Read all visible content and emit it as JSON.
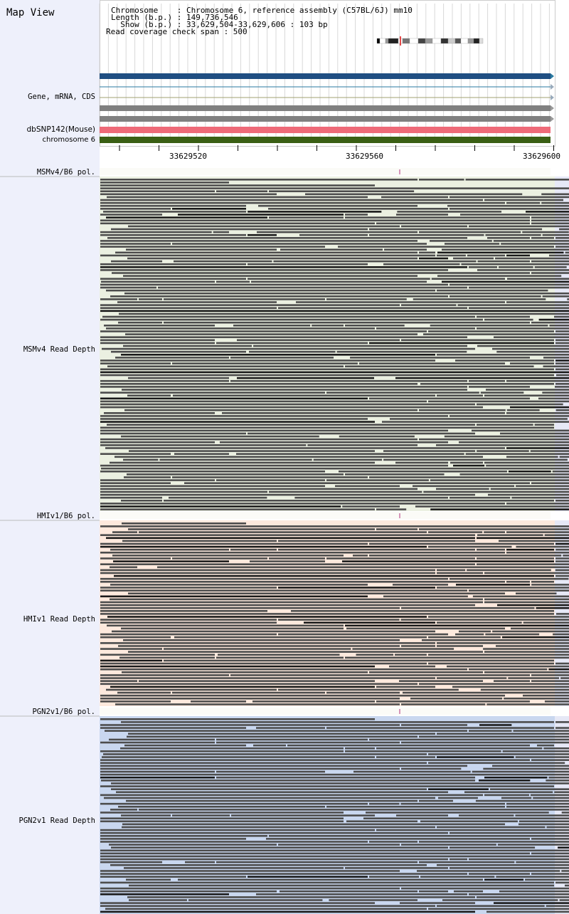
{
  "title": "Map View",
  "info": {
    "line1": "Chromosome    : Chromosome 6, reference assembly (C57BL/6J) mm10",
    "line2": "Length (b.p.) : 149,736,546",
    "line3": "  Show (b.p.) : 33,629,504-33,629,606 : 103 bp",
    "line4": "Read coverage check span : 500"
  },
  "tracks": {
    "gene": "Gene, mRNA, CDS",
    "dbsnp": "dbSNP142(Mouse)",
    "chrom": "chromosome 6"
  },
  "ticks": [
    "33629520",
    "33629560",
    "33629600"
  ],
  "strains": [
    {
      "pol": "MSMv4/B6 pol.",
      "depth": "MSMv4 Read Depth",
      "bg": "#ebf0e1"
    },
    {
      "pol": "HMIv1/B6 pol.",
      "depth": "HMIv1 Read Depth",
      "bg": "#fde9dd"
    },
    {
      "pol": "PGN2v1/B6 pol.",
      "depth": "PGN2v1 Read Depth",
      "bg": "#c9d7ef"
    }
  ],
  "colors": {
    "gene_blue": "#1f4e82",
    "gray_bar": "#808080",
    "snp": "#ee6a78",
    "chrom_bar": "#3a5f14",
    "read": "#4d4d4d",
    "read_dark": "#1a1a1a",
    "marker": "#b0307c"
  }
}
